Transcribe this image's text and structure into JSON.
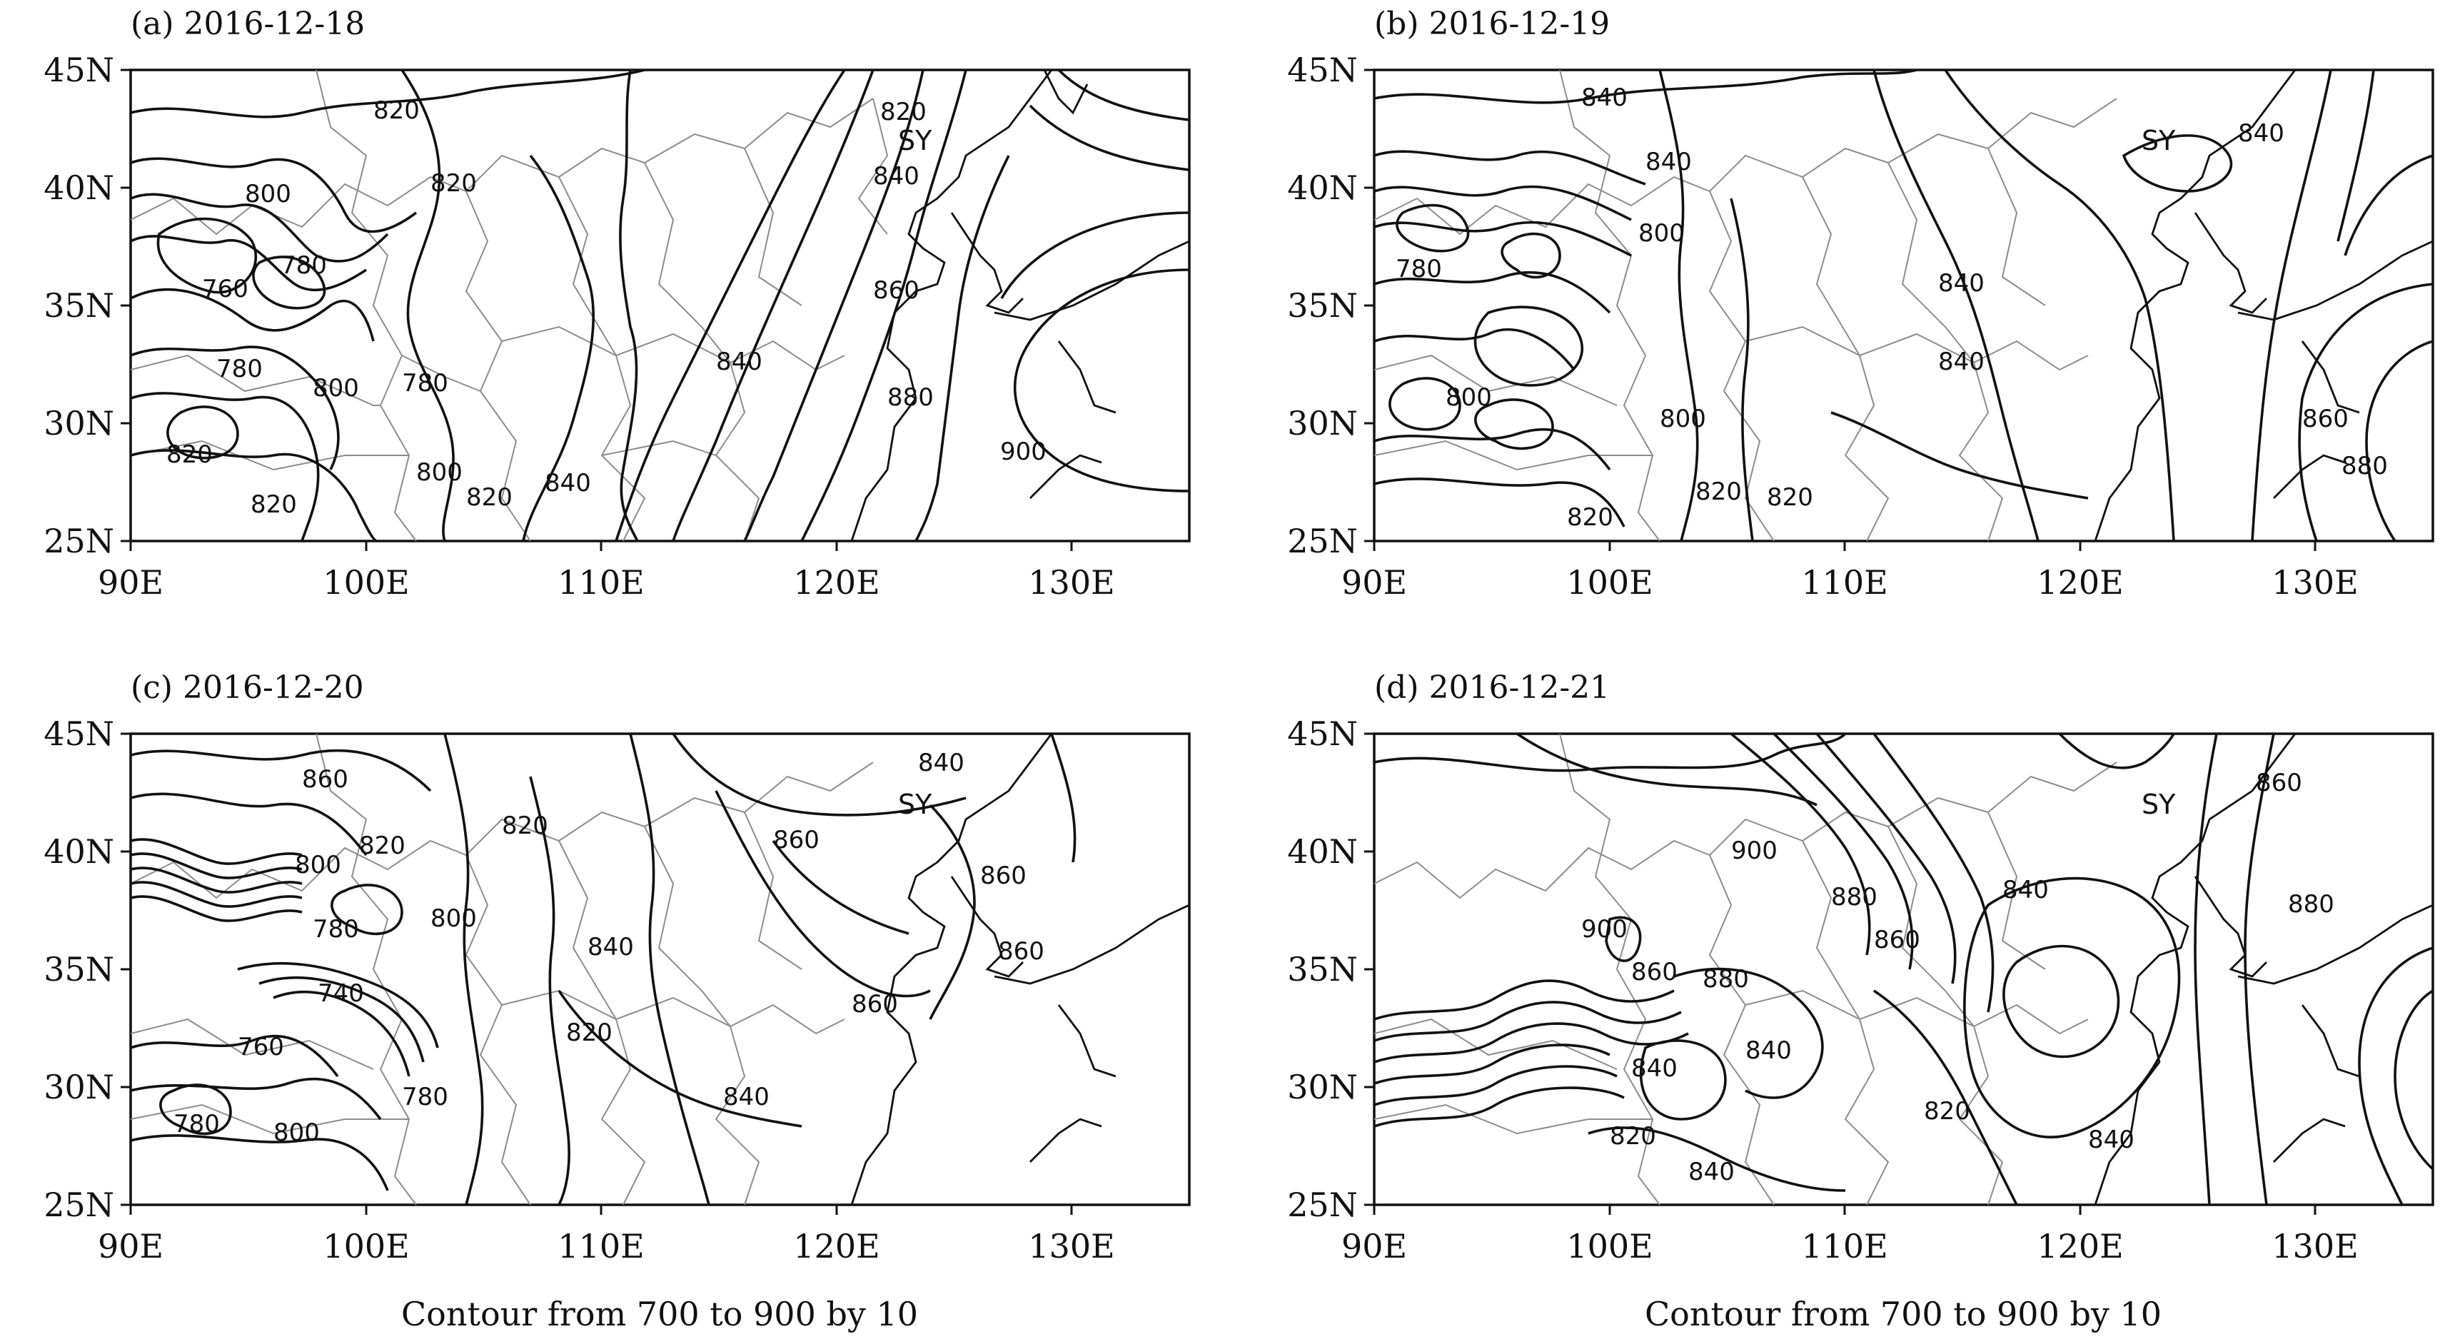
{
  "figure": {
    "caption": "Contour from 700 to 900 by 10",
    "contour_interval": {
      "min": 700,
      "max": 900,
      "step": 10
    },
    "lon_ticks": [
      "90E",
      "100E",
      "110E",
      "120E",
      "130E"
    ],
    "lat_ticks": [
      "45N",
      "40N",
      "35N",
      "30N",
      "25N"
    ],
    "station": "SY"
  },
  "panels": [
    {
      "id": "a",
      "title": "(a) 2016-12-18",
      "labels": [
        "820",
        "820",
        "820",
        "800",
        "780",
        "760",
        "780",
        "800",
        "780",
        "820",
        "820",
        "800",
        "820",
        "840",
        "840",
        "840",
        "860",
        "880",
        "900"
      ]
    },
    {
      "id": "b",
      "title": "(b) 2016-12-19",
      "labels": [
        "840",
        "840",
        "800",
        "780",
        "800",
        "800",
        "820",
        "820",
        "820",
        "840",
        "840",
        "860",
        "880",
        "840"
      ]
    },
    {
      "id": "c",
      "title": "(c) 2016-12-20",
      "labels": [
        "860",
        "800",
        "820",
        "820",
        "780",
        "740",
        "760",
        "780",
        "800",
        "800",
        "780",
        "840",
        "820",
        "840",
        "860",
        "860",
        "860",
        "840",
        "860"
      ]
    },
    {
      "id": "d",
      "title": "(d) 2016-12-21",
      "labels": [
        "900",
        "900",
        "880",
        "880",
        "860",
        "860",
        "840",
        "840",
        "820",
        "840",
        "840",
        "820",
        "840",
        "860",
        "880"
      ]
    }
  ]
}
